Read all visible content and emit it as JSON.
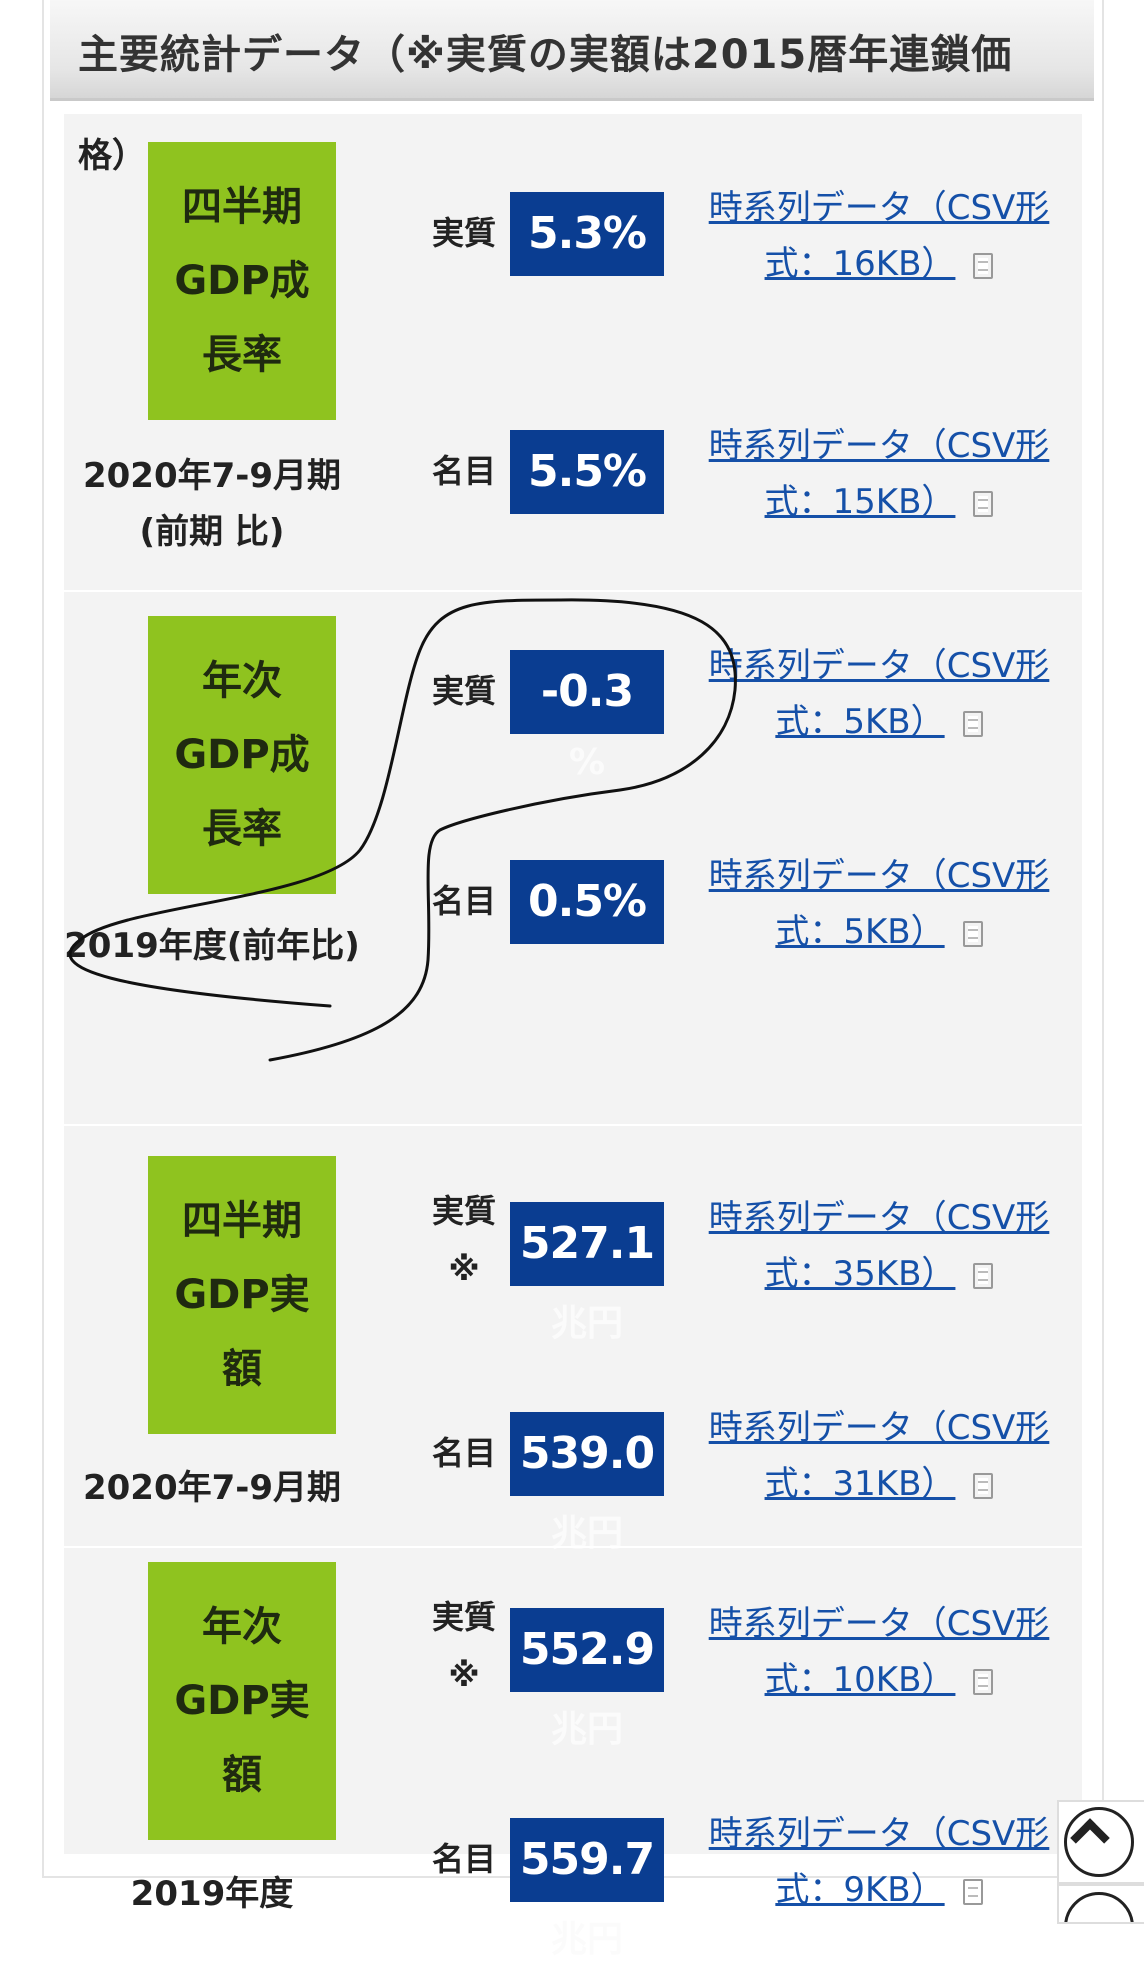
{
  "header": {
    "title": "主要統計データ（※実質の実額は2015暦年連鎖価",
    "title_tail": "格）"
  },
  "colors": {
    "badge": "#8fc31f",
    "value_box": "#0a3d91",
    "link": "#1550a8"
  },
  "sections": [
    {
      "badge": "四半期\nGDP成\n長率",
      "period": "2020年7-9月期(前期\n比)",
      "rows": [
        {
          "label": "実質",
          "value": "5.3%",
          "unit": "",
          "link_line1": "時系列データ（CSV形",
          "link_line2": "式：16KB）"
        },
        {
          "label": "名目",
          "value": "5.5%",
          "unit": "",
          "link_line1": "時系列データ（CSV形",
          "link_line2": "式：15KB）"
        }
      ]
    },
    {
      "badge": "年次\nGDP成\n長率",
      "period": "2019年度(前年比)",
      "rows": [
        {
          "label": "実質",
          "value": "-0.3",
          "unit": "%",
          "link_line1": "時系列データ（CSV形",
          "link_line2": "式：5KB）"
        },
        {
          "label": "名目",
          "value": "0.5%",
          "unit": "",
          "link_line1": "時系列データ（CSV形",
          "link_line2": "式：5KB）"
        }
      ]
    },
    {
      "badge": "四半期\nGDP実\n額",
      "period": "2020年7-9月期",
      "rows": [
        {
          "label": "実質\n※",
          "value": "527.1",
          "unit": "兆円",
          "link_line1": "時系列データ（CSV形",
          "link_line2": "式：35KB）"
        },
        {
          "label": "名目",
          "value": "539.0",
          "unit": "兆円",
          "link_line1": "時系列データ（CSV形",
          "link_line2": "式：31KB）"
        }
      ]
    },
    {
      "badge": "年次\nGDP実\n額",
      "period": "2019年度",
      "rows": [
        {
          "label": "実質\n※",
          "value": "552.9",
          "unit": "兆円",
          "link_line1": "時系列データ（CSV形",
          "link_line2": "式：10KB）"
        },
        {
          "label": "名目",
          "value": "559.7",
          "unit": "兆円",
          "link_line1": "時系列データ（CSV形",
          "link_line2": "式：9KB）"
        }
      ]
    }
  ]
}
